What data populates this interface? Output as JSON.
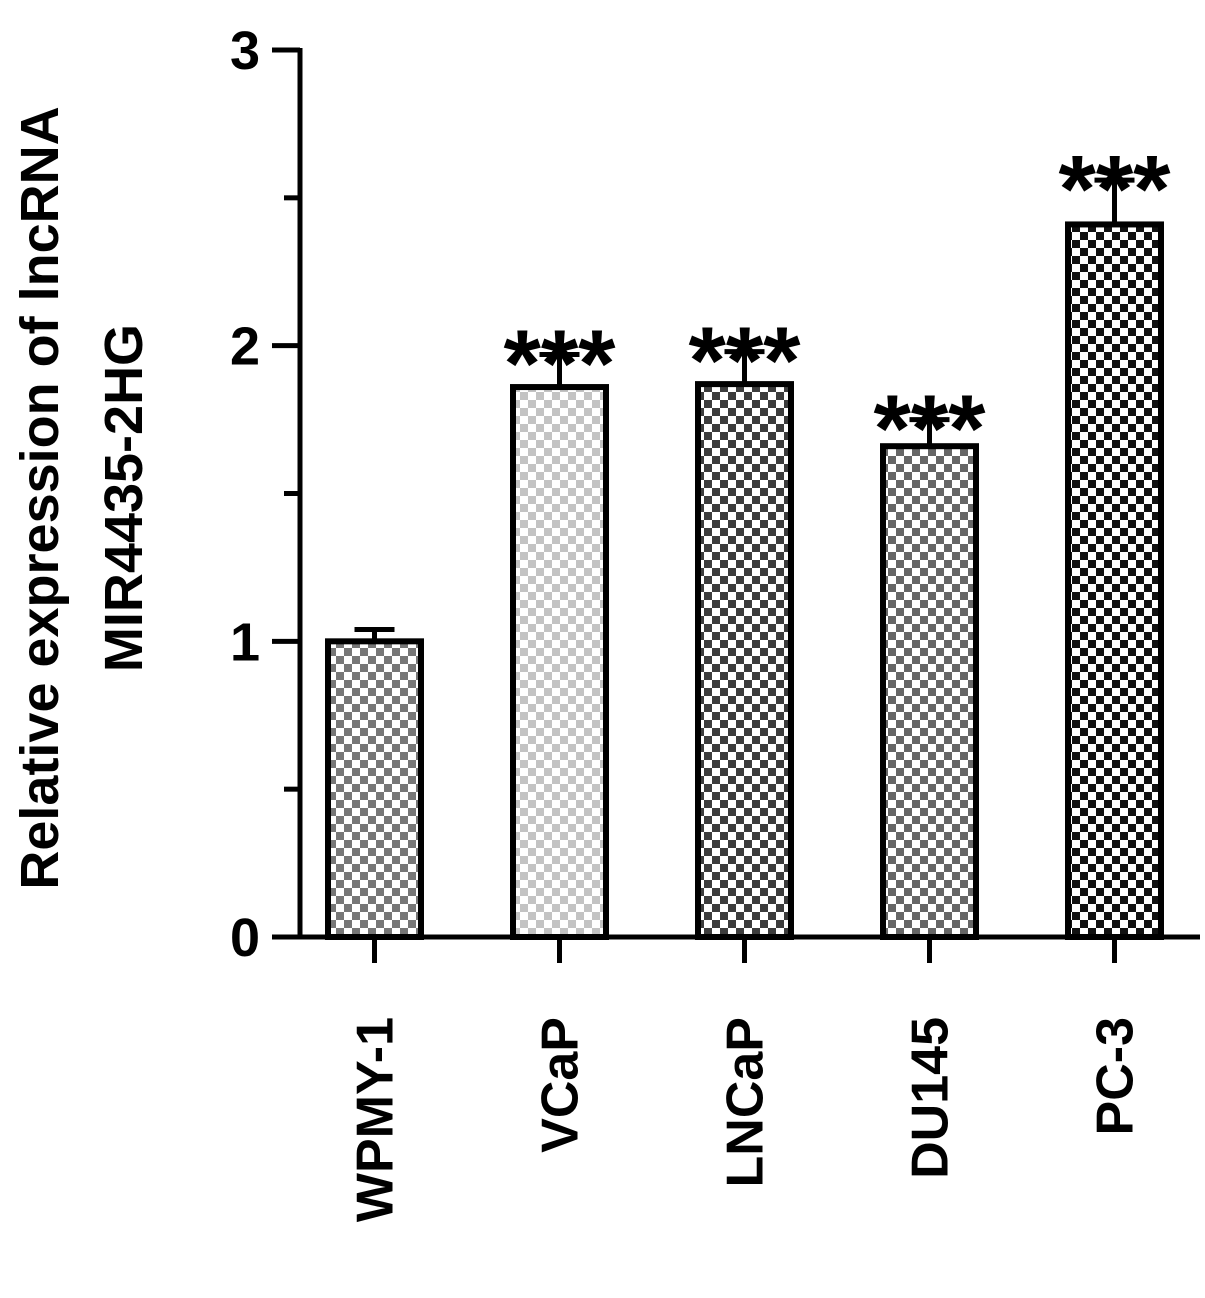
{
  "chart_data": {
    "type": "bar",
    "categories": [
      "WPMY-1",
      "VCaP",
      "LNCaP",
      "DU145",
      "PC-3"
    ],
    "values": [
      1.0,
      1.86,
      1.87,
      1.66,
      2.41
    ],
    "errors": [
      0.04,
      0.11,
      0.11,
      0.09,
      0.15
    ],
    "annotations": [
      "",
      "***",
      "***",
      "***",
      "***"
    ],
    "ylabel_lines": [
      "Relative expression of lncRNA",
      "MIR4435-2HG"
    ],
    "xlabel": "",
    "ylim": [
      0,
      3
    ],
    "yticks": [
      0,
      1,
      2,
      3
    ],
    "ytick_labels": [
      "0",
      "1",
      "2",
      "3"
    ],
    "yminor_ticks": [
      0.5,
      1.5,
      2.5
    ],
    "grid": false,
    "legend": "none",
    "bar_patterns": [
      "checker-medium-gray",
      "checker-light-gray",
      "checker-dark",
      "checker-medium-dark",
      "checker-black"
    ]
  },
  "colors": {
    "axis": "#000000",
    "background": "#ffffff",
    "pattern_pairs": [
      [
        "#ffffff",
        "#777777"
      ],
      [
        "#ffffff",
        "#c3c3c3"
      ],
      [
        "#ffffff",
        "#3c3c3c"
      ],
      [
        "#ffffff",
        "#666666"
      ],
      [
        "#ffffff",
        "#111111"
      ]
    ]
  }
}
